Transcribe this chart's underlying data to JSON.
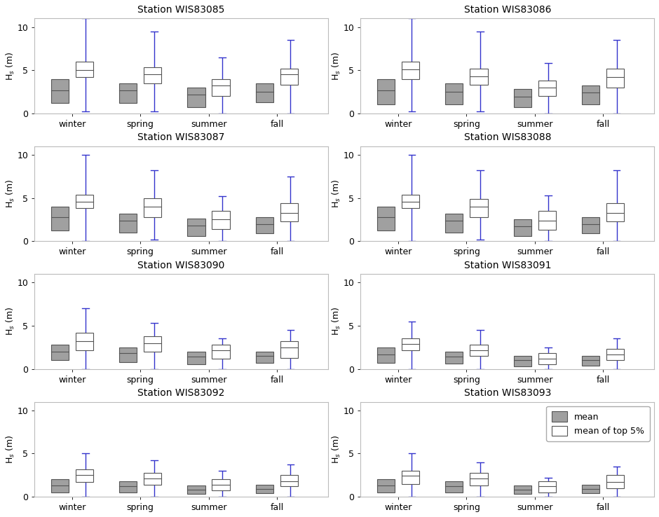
{
  "stations": [
    "Station WIS83085",
    "Station WIS83086",
    "Station WIS83087",
    "Station WIS83088",
    "Station WIS83090",
    "Station WIS83091",
    "Station WIS83092",
    "Station WIS83093"
  ],
  "seasons": [
    "winter",
    "spring",
    "summer",
    "fall"
  ],
  "ylim": [
    0,
    11
  ],
  "yticks": [
    0,
    5,
    10
  ],
  "gray_color": "#a0a0a0",
  "white_color": "#ffffff",
  "blue_color": "#3333cc",
  "box_edge_color": "#555555",
  "title_fontsize": 10,
  "label_fontsize": 9,
  "tick_fontsize": 9,
  "data": {
    "Station WIS83085": {
      "winter": {
        "gray_lo": 1.2,
        "gray_hi": 4.0,
        "gray_mid": 2.7,
        "white_lo": 4.2,
        "white_hi": 6.0,
        "white_mid": 5.0,
        "blue_lo": 0.2,
        "blue_hi": 11.0
      },
      "spring": {
        "gray_lo": 1.2,
        "gray_hi": 3.5,
        "gray_mid": 2.7,
        "white_lo": 3.5,
        "white_hi": 5.3,
        "white_mid": 4.5,
        "blue_lo": 0.2,
        "blue_hi": 9.5
      },
      "summer": {
        "gray_lo": 0.7,
        "gray_hi": 3.0,
        "gray_mid": 2.2,
        "white_lo": 2.0,
        "white_hi": 4.0,
        "white_mid": 3.2,
        "blue_lo": 0.0,
        "blue_hi": 6.5
      },
      "fall": {
        "gray_lo": 1.3,
        "gray_hi": 3.5,
        "gray_mid": 2.5,
        "white_lo": 3.3,
        "white_hi": 5.2,
        "white_mid": 4.5,
        "blue_lo": 0.0,
        "blue_hi": 8.5
      }
    },
    "Station WIS83086": {
      "winter": {
        "gray_lo": 1.0,
        "gray_hi": 4.0,
        "gray_mid": 2.7,
        "white_lo": 4.0,
        "white_hi": 6.0,
        "white_mid": 5.1,
        "blue_lo": 0.2,
        "blue_hi": 11.0
      },
      "spring": {
        "gray_lo": 1.0,
        "gray_hi": 3.5,
        "gray_mid": 2.5,
        "white_lo": 3.3,
        "white_hi": 5.2,
        "white_mid": 4.3,
        "blue_lo": 0.2,
        "blue_hi": 9.5
      },
      "summer": {
        "gray_lo": 0.7,
        "gray_hi": 2.8,
        "gray_mid": 1.9,
        "white_lo": 2.0,
        "white_hi": 3.8,
        "white_mid": 3.0,
        "blue_lo": 0.0,
        "blue_hi": 5.8
      },
      "fall": {
        "gray_lo": 1.0,
        "gray_hi": 3.2,
        "gray_mid": 2.4,
        "white_lo": 3.0,
        "white_hi": 5.2,
        "white_mid": 4.2,
        "blue_lo": 0.0,
        "blue_hi": 8.5
      }
    },
    "Station WIS83087": {
      "winter": {
        "gray_lo": 1.2,
        "gray_hi": 4.0,
        "gray_mid": 2.8,
        "white_lo": 3.8,
        "white_hi": 5.4,
        "white_mid": 4.6,
        "blue_lo": 0.0,
        "blue_hi": 10.0
      },
      "spring": {
        "gray_lo": 1.0,
        "gray_hi": 3.2,
        "gray_mid": 2.4,
        "white_lo": 2.8,
        "white_hi": 5.0,
        "white_mid": 4.0,
        "blue_lo": 0.2,
        "blue_hi": 8.2
      },
      "summer": {
        "gray_lo": 0.6,
        "gray_hi": 2.6,
        "gray_mid": 1.8,
        "white_lo": 1.4,
        "white_hi": 3.5,
        "white_mid": 2.5,
        "blue_lo": 0.0,
        "blue_hi": 5.2
      },
      "fall": {
        "gray_lo": 0.9,
        "gray_hi": 2.8,
        "gray_mid": 2.0,
        "white_lo": 2.3,
        "white_hi": 4.4,
        "white_mid": 3.3,
        "blue_lo": 0.0,
        "blue_hi": 7.5
      }
    },
    "Station WIS83088": {
      "winter": {
        "gray_lo": 1.2,
        "gray_hi": 4.0,
        "gray_mid": 2.8,
        "white_lo": 3.8,
        "white_hi": 5.4,
        "white_mid": 4.6,
        "blue_lo": 0.0,
        "blue_hi": 10.0
      },
      "spring": {
        "gray_lo": 1.0,
        "gray_hi": 3.2,
        "gray_mid": 2.4,
        "white_lo": 2.8,
        "white_hi": 4.9,
        "white_mid": 4.0,
        "blue_lo": 0.2,
        "blue_hi": 8.2
      },
      "summer": {
        "gray_lo": 0.6,
        "gray_hi": 2.5,
        "gray_mid": 1.7,
        "white_lo": 1.3,
        "white_hi": 3.5,
        "white_mid": 2.4,
        "blue_lo": 0.0,
        "blue_hi": 5.3
      },
      "fall": {
        "gray_lo": 0.9,
        "gray_hi": 2.8,
        "gray_mid": 2.0,
        "white_lo": 2.3,
        "white_hi": 4.4,
        "white_mid": 3.3,
        "blue_lo": 0.0,
        "blue_hi": 8.2
      }
    },
    "Station WIS83090": {
      "winter": {
        "gray_lo": 1.0,
        "gray_hi": 2.8,
        "gray_mid": 2.0,
        "white_lo": 2.2,
        "white_hi": 4.2,
        "white_mid": 3.2,
        "blue_lo": 0.0,
        "blue_hi": 7.0
      },
      "spring": {
        "gray_lo": 0.8,
        "gray_hi": 2.5,
        "gray_mid": 1.8,
        "white_lo": 2.0,
        "white_hi": 3.8,
        "white_mid": 3.0,
        "blue_lo": 0.0,
        "blue_hi": 5.3
      },
      "summer": {
        "gray_lo": 0.5,
        "gray_hi": 2.0,
        "gray_mid": 1.4,
        "white_lo": 1.2,
        "white_hi": 2.8,
        "white_mid": 2.2,
        "blue_lo": 0.0,
        "blue_hi": 3.5
      },
      "fall": {
        "gray_lo": 0.7,
        "gray_hi": 2.0,
        "gray_mid": 1.5,
        "white_lo": 1.3,
        "white_hi": 3.2,
        "white_mid": 2.5,
        "blue_lo": 0.0,
        "blue_hi": 4.5
      }
    },
    "Station WIS83091": {
      "winter": {
        "gray_lo": 0.7,
        "gray_hi": 2.5,
        "gray_mid": 1.7,
        "white_lo": 2.2,
        "white_hi": 3.5,
        "white_mid": 2.9,
        "blue_lo": 0.0,
        "blue_hi": 5.5
      },
      "spring": {
        "gray_lo": 0.6,
        "gray_hi": 2.0,
        "gray_mid": 1.4,
        "white_lo": 1.5,
        "white_hi": 2.8,
        "white_mid": 2.2,
        "blue_lo": 0.0,
        "blue_hi": 4.5
      },
      "summer": {
        "gray_lo": 0.3,
        "gray_hi": 1.5,
        "gray_mid": 1.0,
        "white_lo": 0.5,
        "white_hi": 1.8,
        "white_mid": 1.2,
        "blue_lo": 0.0,
        "blue_hi": 2.5
      },
      "fall": {
        "gray_lo": 0.4,
        "gray_hi": 1.5,
        "gray_mid": 1.0,
        "white_lo": 1.0,
        "white_hi": 2.3,
        "white_mid": 1.7,
        "blue_lo": 0.0,
        "blue_hi": 3.5
      }
    },
    "Station WIS83092": {
      "winter": {
        "gray_lo": 0.5,
        "gray_hi": 2.0,
        "gray_mid": 1.3,
        "white_lo": 1.7,
        "white_hi": 3.2,
        "white_mid": 2.5,
        "blue_lo": 0.0,
        "blue_hi": 5.0
      },
      "spring": {
        "gray_lo": 0.5,
        "gray_hi": 1.8,
        "gray_mid": 1.2,
        "white_lo": 1.4,
        "white_hi": 2.8,
        "white_mid": 2.1,
        "blue_lo": 0.0,
        "blue_hi": 4.2
      },
      "summer": {
        "gray_lo": 0.3,
        "gray_hi": 1.3,
        "gray_mid": 0.8,
        "white_lo": 0.7,
        "white_hi": 2.0,
        "white_mid": 1.4,
        "blue_lo": 0.0,
        "blue_hi": 3.0
      },
      "fall": {
        "gray_lo": 0.4,
        "gray_hi": 1.4,
        "gray_mid": 0.9,
        "white_lo": 1.2,
        "white_hi": 2.5,
        "white_mid": 1.8,
        "blue_lo": 0.0,
        "blue_hi": 3.7
      }
    },
    "Station WIS83093": {
      "winter": {
        "gray_lo": 0.5,
        "gray_hi": 2.0,
        "gray_mid": 1.3,
        "white_lo": 1.5,
        "white_hi": 3.0,
        "white_mid": 2.4,
        "blue_lo": 0.0,
        "blue_hi": 5.0
      },
      "spring": {
        "gray_lo": 0.5,
        "gray_hi": 1.8,
        "gray_mid": 1.2,
        "white_lo": 1.3,
        "white_hi": 2.8,
        "white_mid": 2.1,
        "blue_lo": 0.0,
        "blue_hi": 4.0
      },
      "summer": {
        "gray_lo": 0.3,
        "gray_hi": 1.3,
        "gray_mid": 0.8,
        "white_lo": 0.5,
        "white_hi": 1.8,
        "white_mid": 1.2,
        "blue_lo": 0.0,
        "blue_hi": 2.2
      },
      "fall": {
        "gray_lo": 0.4,
        "gray_hi": 1.4,
        "gray_mid": 0.9,
        "white_lo": 1.0,
        "white_hi": 2.5,
        "white_mid": 1.7,
        "blue_lo": 0.0,
        "blue_hi": 3.5
      }
    }
  }
}
